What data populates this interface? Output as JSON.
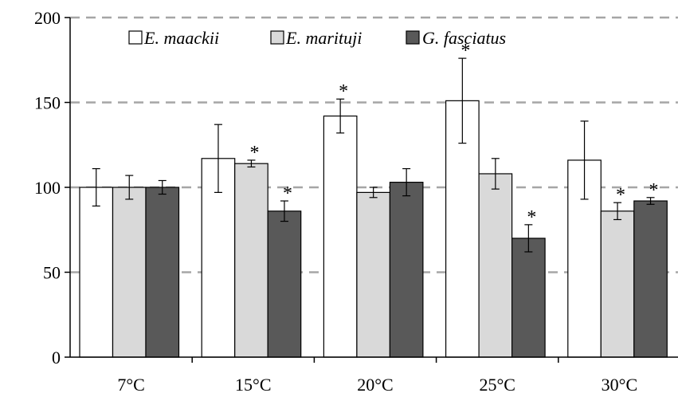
{
  "chart_data": {
    "type": "bar",
    "categories": [
      "7°C",
      "15°C",
      "20°C",
      "25°C",
      "30°C"
    ],
    "ylim": [
      0,
      200
    ],
    "yticks": [
      "0",
      "50",
      "100",
      "150",
      "200"
    ],
    "grid": "dashed horizontal",
    "legend_position": "top",
    "xlabel": "",
    "ylabel": "",
    "title": "",
    "series": [
      {
        "name": "E. maackii",
        "color": "#ffffff",
        "values": [
          100,
          117,
          142,
          151,
          116
        ],
        "errors": [
          11,
          20,
          10,
          25,
          23
        ],
        "significance": [
          "",
          "",
          "*",
          "*",
          ""
        ]
      },
      {
        "name": "E. marituji",
        "color": "#d9d9d9",
        "values": [
          100,
          114,
          97,
          108,
          86
        ],
        "errors": [
          7,
          2,
          3,
          9,
          5
        ],
        "significance": [
          "",
          "*",
          "",
          "",
          "*"
        ]
      },
      {
        "name": "G. fasciatus",
        "color": "#595959",
        "values": [
          100,
          86,
          103,
          70,
          92
        ],
        "errors": [
          4,
          6,
          8,
          8,
          2
        ],
        "significance": [
          "",
          "*",
          "",
          "*",
          "*"
        ]
      }
    ]
  }
}
